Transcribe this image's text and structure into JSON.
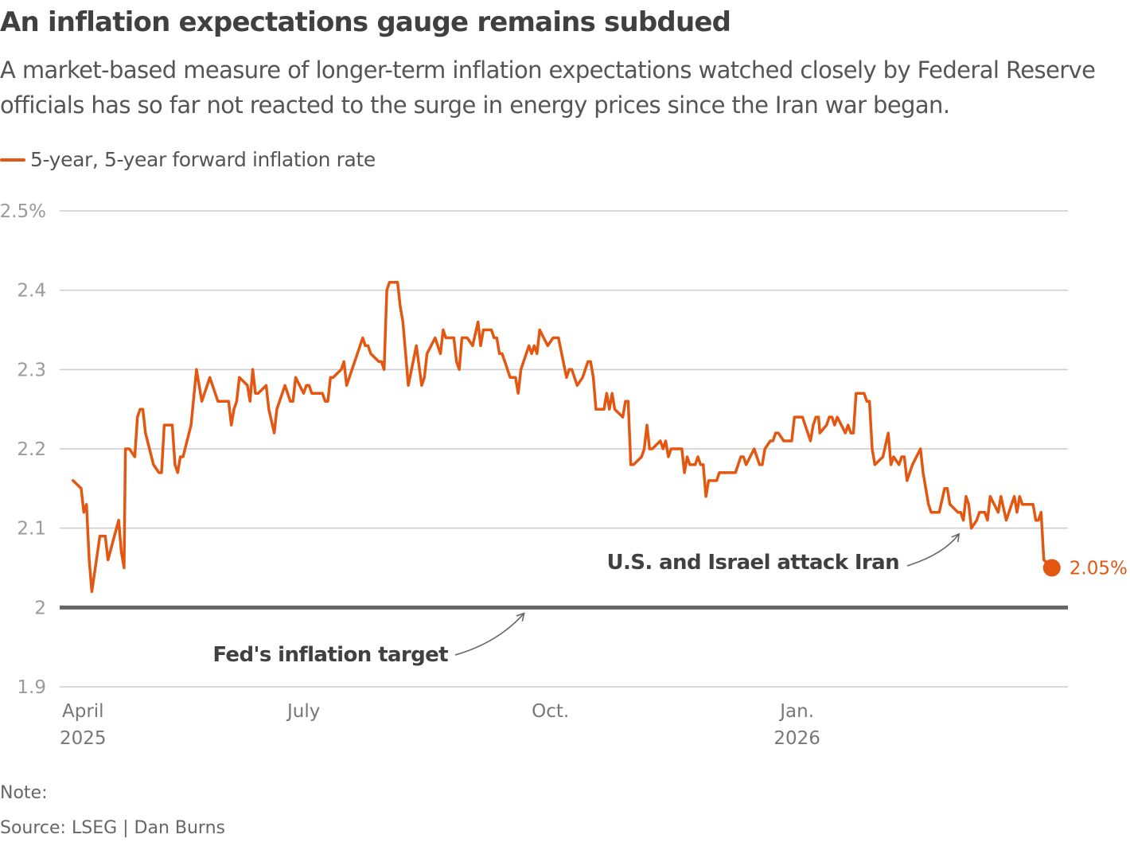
{
  "header": {
    "title": "An inflation expectations gauge remains subdued",
    "subtitle": "A market-based measure of longer-term inflation expectations watched closely by Federal Reserve officials has so far not reacted to the surge in energy prices since the Iran war began."
  },
  "legend": {
    "label": "5-year, 5-year forward inflation rate",
    "color": "#e35711"
  },
  "footer": {
    "note": "Note:",
    "source": "Source: LSEG | Dan Burns"
  },
  "chart_data": {
    "type": "line",
    "title": "An inflation expectations gauge remains subdued",
    "xlabel": "",
    "ylabel": "",
    "ylim": [
      1.9,
      2.5
    ],
    "y_ticks": [
      {
        "value": 2.5,
        "label": "2.5%"
      },
      {
        "value": 2.4,
        "label": "2.4"
      },
      {
        "value": 2.3,
        "label": "2.3"
      },
      {
        "value": 2.2,
        "label": "2.2"
      },
      {
        "value": 2.1,
        "label": "2.1"
      },
      {
        "value": 2.0,
        "label": "2"
      },
      {
        "value": 1.9,
        "label": "1.9"
      }
    ],
    "x_start": "2025-04-01",
    "x_end": "2026-04-15",
    "x_ticks": [
      {
        "day": 0,
        "label": "April",
        "sublabel": "2025"
      },
      {
        "day": 91,
        "label": "July",
        "sublabel": ""
      },
      {
        "day": 183,
        "label": "Oct.",
        "sublabel": ""
      },
      {
        "day": 275,
        "label": "Jan.",
        "sublabel": "2026"
      }
    ],
    "grid": true,
    "legend_position": "top-left",
    "reference_line": {
      "value": 2.0,
      "label": "Fed's inflation target",
      "color": "#666666"
    },
    "annotations": [
      {
        "text": "Fed's inflation target",
        "target_day": 173,
        "target_value": 2.0
      },
      {
        "text": "U.S. and Israel attack Iran",
        "target_day": 337,
        "target_value": 2.1
      }
    ],
    "end_label": {
      "text": "2.05%",
      "value": 2.05
    },
    "series": [
      {
        "name": "5-year, 5-year forward inflation rate",
        "color": "#e35711",
        "points_day_value": [
          [
            5,
            2.16
          ],
          [
            8,
            2.15
          ],
          [
            9,
            2.12
          ],
          [
            10,
            2.13
          ],
          [
            11,
            2.06
          ],
          [
            12,
            2.02
          ],
          [
            15,
            2.09
          ],
          [
            17,
            2.09
          ],
          [
            18,
            2.06
          ],
          [
            22,
            2.11
          ],
          [
            23,
            2.07
          ],
          [
            24,
            2.05
          ],
          [
            24.5,
            2.2
          ],
          [
            26,
            2.2
          ],
          [
            28,
            2.19
          ],
          [
            29,
            2.24
          ],
          [
            30,
            2.25
          ],
          [
            31,
            2.25
          ],
          [
            32,
            2.22
          ],
          [
            35,
            2.18
          ],
          [
            37,
            2.17
          ],
          [
            38,
            2.17
          ],
          [
            39,
            2.23
          ],
          [
            42,
            2.23
          ],
          [
            43,
            2.18
          ],
          [
            44,
            2.17
          ],
          [
            45,
            2.19
          ],
          [
            46,
            2.19
          ],
          [
            49,
            2.23
          ],
          [
            51,
            2.3
          ],
          [
            53,
            2.26
          ],
          [
            56,
            2.29
          ],
          [
            59,
            2.26
          ],
          [
            63,
            2.26
          ],
          [
            64,
            2.23
          ],
          [
            65,
            2.25
          ],
          [
            66,
            2.26
          ],
          [
            67,
            2.29
          ],
          [
            70,
            2.28
          ],
          [
            71,
            2.26
          ],
          [
            72,
            2.3
          ],
          [
            73,
            2.27
          ],
          [
            74,
            2.27
          ],
          [
            77,
            2.28
          ],
          [
            78,
            2.25
          ],
          [
            80,
            2.22
          ],
          [
            81,
            2.25
          ],
          [
            84,
            2.28
          ],
          [
            86,
            2.26
          ],
          [
            87,
            2.26
          ],
          [
            88,
            2.29
          ],
          [
            91,
            2.27
          ],
          [
            92,
            2.28
          ],
          [
            93,
            2.28
          ],
          [
            94,
            2.27
          ],
          [
            98,
            2.27
          ],
          [
            99,
            2.26
          ],
          [
            100,
            2.26
          ],
          [
            101,
            2.29
          ],
          [
            102,
            2.29
          ],
          [
            105,
            2.3
          ],
          [
            106,
            2.31
          ],
          [
            107,
            2.28
          ],
          [
            113,
            2.34
          ],
          [
            114,
            2.33
          ],
          [
            115,
            2.33
          ],
          [
            116,
            2.32
          ],
          [
            119,
            2.31
          ],
          [
            120,
            2.31
          ],
          [
            121,
            2.3
          ],
          [
            122,
            2.4
          ],
          [
            123,
            2.41
          ],
          [
            126,
            2.41
          ],
          [
            127,
            2.38
          ],
          [
            128,
            2.36
          ],
          [
            130,
            2.28
          ],
          [
            133,
            2.33
          ],
          [
            135,
            2.28
          ],
          [
            136,
            2.29
          ],
          [
            137,
            2.32
          ],
          [
            140,
            2.34
          ],
          [
            141,
            2.33
          ],
          [
            142,
            2.32
          ],
          [
            143,
            2.35
          ],
          [
            144,
            2.34
          ],
          [
            147,
            2.34
          ],
          [
            148,
            2.31
          ],
          [
            149,
            2.3
          ],
          [
            150,
            2.34
          ],
          [
            152,
            2.34
          ],
          [
            154,
            2.33
          ],
          [
            156,
            2.36
          ],
          [
            157,
            2.33
          ],
          [
            158,
            2.35
          ],
          [
            161,
            2.35
          ],
          [
            162,
            2.34
          ],
          [
            163,
            2.34
          ],
          [
            164,
            2.32
          ],
          [
            165,
            2.32
          ],
          [
            168,
            2.29
          ],
          [
            170,
            2.29
          ],
          [
            171,
            2.27
          ],
          [
            172,
            2.3
          ],
          [
            175,
            2.33
          ],
          [
            176,
            2.32
          ],
          [
            177,
            2.33
          ],
          [
            178,
            2.32
          ],
          [
            179,
            2.35
          ],
          [
            182,
            2.33
          ],
          [
            184,
            2.34
          ],
          [
            186,
            2.34
          ],
          [
            189,
            2.29
          ],
          [
            190,
            2.3
          ],
          [
            191,
            2.3
          ],
          [
            193,
            2.28
          ],
          [
            195,
            2.29
          ],
          [
            197,
            2.31
          ],
          [
            198,
            2.31
          ],
          [
            199,
            2.29
          ],
          [
            200,
            2.25
          ],
          [
            203,
            2.25
          ],
          [
            204,
            2.27
          ],
          [
            205,
            2.25
          ],
          [
            206,
            2.27
          ],
          [
            207,
            2.25
          ],
          [
            210,
            2.24
          ],
          [
            211,
            2.26
          ],
          [
            212,
            2.26
          ],
          [
            213,
            2.18
          ],
          [
            214,
            2.18
          ],
          [
            217,
            2.19
          ],
          [
            218,
            2.2
          ],
          [
            219,
            2.23
          ],
          [
            220,
            2.2
          ],
          [
            221,
            2.2
          ],
          [
            224,
            2.21
          ],
          [
            225,
            2.2
          ],
          [
            226,
            2.21
          ],
          [
            227,
            2.19
          ],
          [
            228,
            2.2
          ],
          [
            232,
            2.2
          ],
          [
            233,
            2.17
          ],
          [
            234,
            2.19
          ],
          [
            235,
            2.18
          ],
          [
            237,
            2.18
          ],
          [
            238,
            2.19
          ],
          [
            239,
            2.18
          ],
          [
            240,
            2.18
          ],
          [
            241,
            2.14
          ],
          [
            242,
            2.16
          ],
          [
            245,
            2.16
          ],
          [
            246,
            2.17
          ],
          [
            252,
            2.17
          ],
          [
            254,
            2.19
          ],
          [
            255,
            2.19
          ],
          [
            256,
            2.18
          ],
          [
            259,
            2.2
          ],
          [
            260,
            2.19
          ],
          [
            261,
            2.18
          ],
          [
            262,
            2.18
          ],
          [
            263,
            2.2
          ],
          [
            265,
            2.21
          ],
          [
            266,
            2.21
          ],
          [
            267,
            2.22
          ],
          [
            268,
            2.22
          ],
          [
            270,
            2.21
          ],
          [
            273,
            2.21
          ],
          [
            274,
            2.24
          ],
          [
            277,
            2.24
          ],
          [
            280,
            2.21
          ],
          [
            281,
            2.23
          ],
          [
            282,
            2.24
          ],
          [
            283,
            2.24
          ],
          [
            283.5,
            2.22
          ],
          [
            286,
            2.23
          ],
          [
            287,
            2.24
          ],
          [
            288,
            2.24
          ],
          [
            289,
            2.23
          ],
          [
            290,
            2.24
          ],
          [
            293,
            2.22
          ],
          [
            294,
            2.23
          ],
          [
            295,
            2.22
          ],
          [
            296,
            2.22
          ],
          [
            297,
            2.27
          ],
          [
            300,
            2.27
          ],
          [
            301,
            2.26
          ],
          [
            302,
            2.26
          ],
          [
            303,
            2.2
          ],
          [
            304,
            2.18
          ],
          [
            307,
            2.19
          ],
          [
            309,
            2.22
          ],
          [
            310,
            2.18
          ],
          [
            311,
            2.19
          ],
          [
            313,
            2.18
          ],
          [
            314,
            2.19
          ],
          [
            315,
            2.19
          ],
          [
            316,
            2.16
          ],
          [
            318,
            2.18
          ],
          [
            321,
            2.2
          ],
          [
            322,
            2.17
          ],
          [
            324,
            2.13
          ],
          [
            325,
            2.12
          ],
          [
            328,
            2.12
          ],
          [
            330,
            2.15
          ],
          [
            331,
            2.15
          ],
          [
            332,
            2.13
          ],
          [
            335,
            2.12
          ],
          [
            336,
            2.12
          ],
          [
            337,
            2.11
          ],
          [
            338,
            2.14
          ],
          [
            339,
            2.13
          ],
          [
            340,
            2.1
          ],
          [
            342,
            2.11
          ],
          [
            343,
            2.12
          ],
          [
            345,
            2.12
          ],
          [
            346,
            2.11
          ],
          [
            347,
            2.14
          ],
          [
            350,
            2.12
          ],
          [
            351,
            2.14
          ],
          [
            353,
            2.11
          ],
          [
            355,
            2.13
          ],
          [
            356,
            2.14
          ],
          [
            357,
            2.12
          ],
          [
            358,
            2.14
          ],
          [
            359,
            2.13
          ],
          [
            363,
            2.13
          ],
          [
            364,
            2.11
          ],
          [
            365,
            2.11
          ],
          [
            366,
            2.12
          ],
          [
            367,
            2.06
          ],
          [
            370,
            2.05
          ]
        ]
      }
    ]
  }
}
